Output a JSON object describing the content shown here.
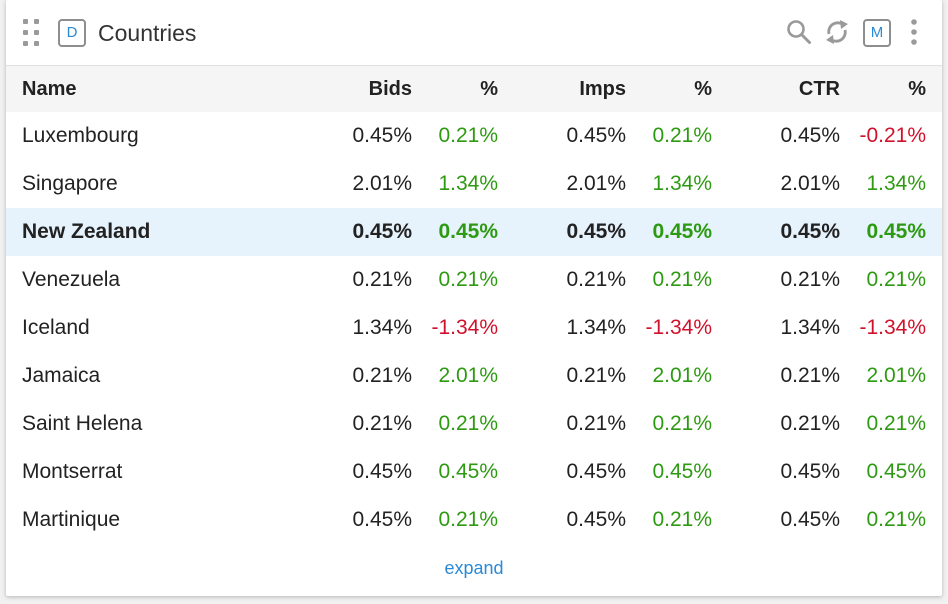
{
  "widget": {
    "badge_left": "D",
    "title": "Countries",
    "badge_right": "M",
    "expand_label": "expand"
  },
  "table": {
    "columns": [
      "Name",
      "Bids",
      "%",
      "Imps",
      "%",
      "CTR",
      "%"
    ],
    "rows": [
      {
        "name": "Luxembourg",
        "bids": "0.45%",
        "bids_pct": "0.21%",
        "imps": "0.45%",
        "imps_pct": "0.21%",
        "ctr": "0.45%",
        "ctr_pct": "-0.21%"
      },
      {
        "name": "Singapore",
        "bids": "2.01%",
        "bids_pct": "1.34%",
        "imps": "2.01%",
        "imps_pct": "1.34%",
        "ctr": "2.01%",
        "ctr_pct": "1.34%"
      },
      {
        "name": "New Zealand",
        "bids": "0.45%",
        "bids_pct": "0.45%",
        "imps": "0.45%",
        "imps_pct": "0.45%",
        "ctr": "0.45%",
        "ctr_pct": "0.45%"
      },
      {
        "name": "Venezuela",
        "bids": "0.21%",
        "bids_pct": "0.21%",
        "imps": "0.21%",
        "imps_pct": "0.21%",
        "ctr": "0.21%",
        "ctr_pct": "0.21%"
      },
      {
        "name": "Iceland",
        "bids": "1.34%",
        "bids_pct": "-1.34%",
        "imps": "1.34%",
        "imps_pct": "-1.34%",
        "ctr": "1.34%",
        "ctr_pct": "-1.34%"
      },
      {
        "name": "Jamaica",
        "bids": "0.21%",
        "bids_pct": "2.01%",
        "imps": "0.21%",
        "imps_pct": "2.01%",
        "ctr": "0.21%",
        "ctr_pct": "2.01%"
      },
      {
        "name": "Saint Helena",
        "bids": "0.21%",
        "bids_pct": "0.21%",
        "imps": "0.21%",
        "imps_pct": "0.21%",
        "ctr": "0.21%",
        "ctr_pct": "0.21%"
      },
      {
        "name": "Montserrat",
        "bids": "0.45%",
        "bids_pct": "0.45%",
        "imps": "0.45%",
        "imps_pct": "0.45%",
        "ctr": "0.45%",
        "ctr_pct": "0.45%"
      },
      {
        "name": "Martinique",
        "bids": "0.45%",
        "bids_pct": "0.21%",
        "imps": "0.45%",
        "imps_pct": "0.21%",
        "ctr": "0.45%",
        "ctr_pct": "0.21%"
      }
    ]
  },
  "icons": {
    "drag": "drag-handle-icon",
    "search": "search-icon",
    "refresh": "refresh-icon",
    "menu": "more-vertical-icon"
  },
  "colors": {
    "positive": "#2e9a12",
    "negative": "#d0112b",
    "accent": "#2a8ad6",
    "selected_row": "#e6f2fc"
  }
}
